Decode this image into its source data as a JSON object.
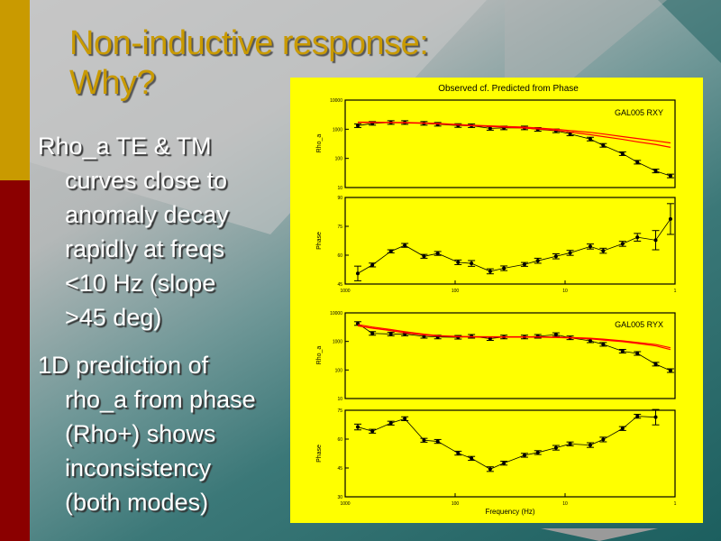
{
  "slide": {
    "title_lines": [
      "Non-inductive response:",
      "Why?"
    ],
    "bullets": [
      {
        "lines": [
          "Rho_a TE & TM",
          "curves close to",
          "anomaly decay",
          "rapidly at freqs",
          "<10 Hz (slope",
          ">45 deg)"
        ]
      },
      {
        "lines": [
          "1D prediction of",
          "rho_a from phase",
          "(Rho+) shows",
          "inconsistency",
          "(both modes)"
        ]
      }
    ],
    "colors": {
      "title": "#c99a00",
      "chart_bg": "#ffff00",
      "observed": "#000000",
      "predicted": "#ff0000"
    }
  },
  "chart_data": [
    {
      "type": "line",
      "title": "Observed cf. Predicted from Phase",
      "label": "GAL005 RXY",
      "ylabel": "Rho_a",
      "xlabel": "",
      "xscale": "log",
      "xlim": [
        1000,
        1
      ],
      "yscale": "log",
      "ylim": [
        10,
        10000
      ],
      "yticks": [
        "10000",
        "1000",
        "100",
        "10"
      ],
      "xticks": [
        "1000",
        "100",
        "10",
        "1"
      ],
      "x": [
        768,
        566,
        384,
        287,
        192,
        144,
        94,
        71,
        48,
        36,
        23.4,
        17.7,
        12.1,
        9,
        5.9,
        4.5,
        3,
        2.2,
        1.5,
        1.1
      ],
      "series": [
        {
          "name": "observed",
          "values": [
            1320,
            1590,
            1700,
            1700,
            1590,
            1480,
            1340,
            1320,
            1070,
            1110,
            1110,
            990,
            880,
            690,
            460,
            280,
            145,
            74,
            37,
            25
          ]
        },
        {
          "name": "predicted-1",
          "values": [
            1750,
            1750,
            1720,
            1700,
            1650,
            1580,
            1450,
            1380,
            1300,
            1250,
            1180,
            1100,
            1000,
            900,
            780,
            690,
            560,
            480,
            400,
            340
          ]
        },
        {
          "name": "predicted-2",
          "values": [
            1700,
            1700,
            1680,
            1650,
            1600,
            1520,
            1400,
            1320,
            1240,
            1180,
            1100,
            1020,
            920,
            800,
            650,
            560,
            450,
            370,
            300,
            240
          ]
        }
      ]
    },
    {
      "type": "line",
      "ylabel": "Phase",
      "xscale": "log",
      "xlim": [
        1000,
        1
      ],
      "ylim": [
        45,
        90
      ],
      "yticks": [
        "90",
        "75",
        "60",
        "45"
      ],
      "xticks": [
        "1000",
        "100",
        "10",
        "1"
      ],
      "x": [
        768,
        566,
        384,
        287,
        192,
        144,
        94,
        71,
        48,
        36,
        23.4,
        17.7,
        12.1,
        9,
        5.9,
        4.5,
        3,
        2.2,
        1.5,
        1.1
      ],
      "series": [
        {
          "name": "observed",
          "values": [
            50.5,
            54.9,
            62,
            65.1,
            59.4,
            60.9,
            56.3,
            55.7,
            51.6,
            53.2,
            55.2,
            57.1,
            59.4,
            61.2,
            64.5,
            62.3,
            65.9,
            69.3,
            67.8,
            78.8
          ],
          "errors": [
            3.8,
            1,
            0.8,
            1,
            1,
            1,
            1.2,
            1.5,
            1.3,
            1.2,
            1,
            1.3,
            1.3,
            1.3,
            1.3,
            1.3,
            1.3,
            2,
            5,
            8
          ]
        }
      ]
    },
    {
      "type": "line",
      "label": "GAL005 RYX",
      "ylabel": "Rho_a",
      "xscale": "log",
      "xlim": [
        1000,
        1
      ],
      "yscale": "log",
      "ylim": [
        10,
        10000
      ],
      "yticks": [
        "10000",
        "1000",
        "100",
        "10"
      ],
      "x": [
        768,
        566,
        384,
        287,
        192,
        144,
        94,
        71,
        48,
        36,
        23.4,
        17.7,
        12.1,
        9,
        5.9,
        4.5,
        3,
        2.2,
        1.5,
        1.1
      ],
      "series": [
        {
          "name": "observed",
          "values": [
            4240,
            1910,
            1820,
            1820,
            1510,
            1430,
            1400,
            1510,
            1260,
            1430,
            1430,
            1510,
            1730,
            1340,
            1050,
            790,
            455,
            380,
            160,
            95
          ]
        },
        {
          "name": "predicted-1",
          "values": [
            3900,
            3200,
            2600,
            2200,
            1800,
            1600,
            1500,
            1470,
            1460,
            1460,
            1460,
            1450,
            1420,
            1380,
            1300,
            1200,
            1050,
            920,
            780,
            600
          ]
        },
        {
          "name": "predicted-2",
          "values": [
            3500,
            2900,
            2400,
            2000,
            1700,
            1550,
            1450,
            1430,
            1420,
            1420,
            1420,
            1410,
            1380,
            1330,
            1230,
            1120,
            980,
            850,
            700,
            520
          ]
        }
      ]
    },
    {
      "type": "line",
      "ylabel": "Phase",
      "xlabel": "Frequency (Hz)",
      "xscale": "log",
      "xlim": [
        1000,
        1
      ],
      "ylim": [
        30,
        75
      ],
      "yticks": [
        "75",
        "60",
        "45",
        "30"
      ],
      "xticks": [
        "1000",
        "100",
        "10",
        "1"
      ],
      "x": [
        768,
        566,
        384,
        287,
        192,
        144,
        94,
        71,
        48,
        36,
        23.4,
        17.7,
        12.1,
        9,
        5.9,
        4.5,
        3,
        2.2,
        1.5
      ],
      "series": [
        {
          "name": "observed",
          "values": [
            66.3,
            64.1,
            68.3,
            70.6,
            59.4,
            58.8,
            52.7,
            50,
            44.4,
            47.5,
            51.6,
            53,
            55.5,
            57.5,
            56.9,
            59.8,
            65.5,
            71.9,
            71.4
          ],
          "errors": [
            1.5,
            1,
            1,
            1,
            1,
            1,
            1,
            1,
            1.2,
            1,
            1,
            1,
            1.2,
            1,
            1.2,
            1.2,
            1,
            1,
            4
          ]
        }
      ]
    }
  ]
}
